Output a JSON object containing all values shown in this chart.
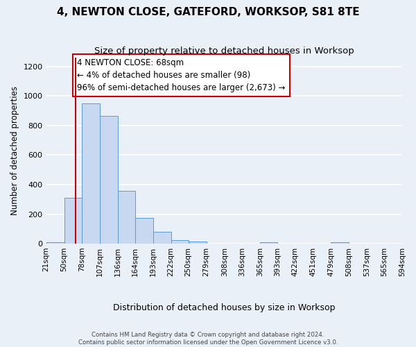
{
  "title": "4, NEWTON CLOSE, GATEFORD, WORKSOP, S81 8TE",
  "subtitle": "Size of property relative to detached houses in Worksop",
  "xlabel": "Distribution of detached houses by size in Worksop",
  "ylabel": "Number of detached properties",
  "bin_edges": [
    21,
    50,
    78,
    107,
    136,
    164,
    193,
    222,
    250,
    279,
    308,
    336,
    365,
    393,
    422,
    451,
    479,
    508,
    537,
    565,
    594
  ],
  "bar_heights": [
    10,
    310,
    950,
    865,
    360,
    175,
    80,
    25,
    15,
    0,
    0,
    0,
    10,
    0,
    0,
    0,
    10,
    0,
    0,
    0
  ],
  "bar_color": "#c8d8f0",
  "bar_edge_color": "#5b9bd5",
  "vline_x": 68,
  "vline_color": "#cc0000",
  "annotation_text": "4 NEWTON CLOSE: 68sqm\n← 4% of detached houses are smaller (98)\n96% of semi-detached houses are larger (2,673) →",
  "annotation_box_color": "#ffffff",
  "annotation_box_edge": "#cc0000",
  "ylim": [
    0,
    1260
  ],
  "yticks": [
    0,
    200,
    400,
    600,
    800,
    1000,
    1200
  ],
  "background_color": "#eaf0f8",
  "grid_color": "#ffffff",
  "footer_line1": "Contains HM Land Registry data © Crown copyright and database right 2024.",
  "footer_line2": "Contains public sector information licensed under the Open Government Licence v3.0.",
  "title_fontsize": 11,
  "subtitle_fontsize": 9.5,
  "annotation_fontsize": 8.5,
  "tick_fontsize": 7.5,
  "ylabel_fontsize": 8.5,
  "xlabel_fontsize": 9
}
